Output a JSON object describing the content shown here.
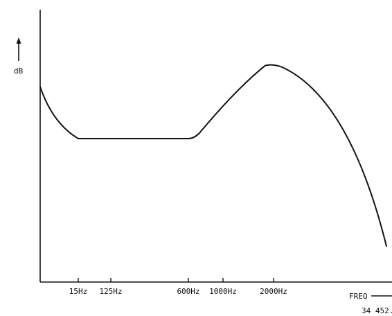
{
  "chart_data": {
    "type": "line",
    "title": "",
    "ylabel": "dB",
    "xlabel": "FREQ",
    "figure_ref": "34 452.",
    "x_ticks": [
      "15Hz",
      "125Hz",
      "600Hz",
      "1000Hz",
      "2000Hz"
    ],
    "series": [
      {
        "points": [
          {
            "x": "start",
            "y": 0.78
          },
          {
            "x": "15Hz",
            "y": 0.52
          },
          {
            "x": "125Hz",
            "y": 0.52
          },
          {
            "x": "600Hz",
            "y": 0.52
          },
          {
            "x": "1000Hz",
            "y": 0.71
          },
          {
            "x": "2000Hz",
            "y": 0.89
          },
          {
            "x": "end",
            "y": -0.02
          }
        ]
      }
    ],
    "ylim": [
      -0.2,
      1.0
    ],
    "grid": false,
    "legend": "none"
  },
  "colors": {
    "ink": "#111111",
    "background": "#ffffff"
  }
}
